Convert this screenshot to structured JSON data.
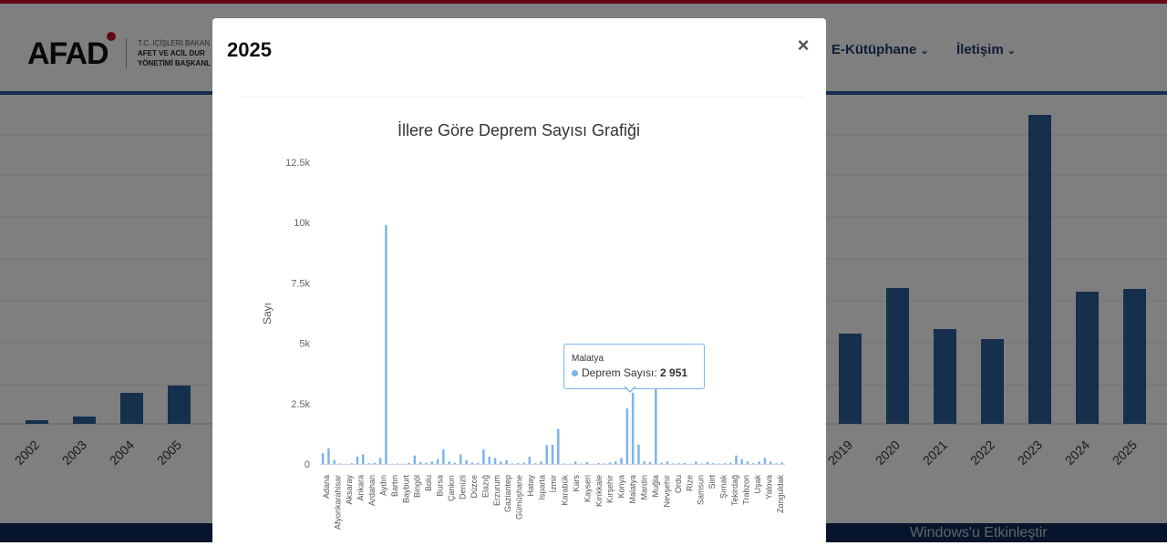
{
  "header": {
    "logo_text": "AFAD",
    "ministry_line1": "T.C. İÇİŞLERİ BAKAN",
    "ministry_line2": "AFET VE ACİL DUR",
    "ministry_line3": "YÖNETİMİ BAŞKANL",
    "nav": [
      {
        "label": "E-Kütüphane"
      },
      {
        "label": "İletişim"
      }
    ]
  },
  "background_chart": {
    "years": [
      "2002",
      "2003",
      "2004",
      "2005",
      "2019",
      "2020",
      "2021",
      "2022",
      "2023",
      "2024",
      "2025"
    ],
    "bar_color": "#2d5f9a"
  },
  "footer": {
    "watermark": "Windows'u Etkinleştir"
  },
  "modal": {
    "title": "2025",
    "close_label": "×"
  },
  "chart_data": {
    "type": "bar",
    "title": "İllere Göre Deprem Sayısı Grafiği",
    "ylabel": "Sayı",
    "xlabel": "",
    "ylim": [
      0,
      12500
    ],
    "yticks": [
      "0",
      "2.5k",
      "5k",
      "7.5k",
      "10k",
      "12.5k"
    ],
    "ytick_values": [
      0,
      2500,
      5000,
      7500,
      10000,
      12500
    ],
    "bar_color": "#7cb5ec",
    "series": [
      {
        "name": "Deprem Sayısı"
      }
    ],
    "categories": [
      "Adana",
      "Adıyaman",
      "Afyonkarahisar",
      "Ağrı",
      "Aksaray",
      "Amasya",
      "Ankara",
      "Antalya",
      "Ardahan",
      "Artvin",
      "Aydın",
      "Balıkesir",
      "Bartın",
      "Batman",
      "Bayburt",
      "Bilecik",
      "Bingöl",
      "Bitlis",
      "Bolu",
      "Burdur",
      "Bursa",
      "Çanakkale",
      "Çankırı",
      "Çorum",
      "Denizli",
      "Diyarbakır",
      "Düzce",
      "Edirne",
      "Elazığ",
      "Erzincan",
      "Erzurum",
      "Eskişehir",
      "Gaziantep",
      "Giresun",
      "Gümüşhane",
      "Hakkari",
      "Hatay",
      "Iğdır",
      "Isparta",
      "İstanbul",
      "İzmir",
      "Kahramanmaraş",
      "Karabük",
      "Karaman",
      "Kars",
      "Kastamonu",
      "Kayseri",
      "Kilis",
      "Kırıkkale",
      "Kırklareli",
      "Kırşehir",
      "Kocaeli",
      "Konya",
      "Kütahya",
      "Malatya",
      "Manisa",
      "Mardin",
      "Mersin",
      "Muğla",
      "Muş",
      "Nevşehir",
      "Niğde",
      "Ordu",
      "Osmaniye",
      "Rize",
      "Sakarya",
      "Samsun",
      "Şanlıurfa",
      "Siirt",
      "Sinop",
      "Şırnak",
      "Sivas",
      "Tekirdağ",
      "Tokat",
      "Trabzon",
      "Tunceli",
      "Uşak",
      "Van",
      "Yalova",
      "Yozgat",
      "Zonguldak"
    ],
    "visible_labels": [
      "Adana",
      "Afyonkarahisar",
      "Aksaray",
      "Ankara",
      "Ardahan",
      "Aydın",
      "Bartın",
      "Bayburt",
      "Bingöl",
      "Bolu",
      "Bursa",
      "Çankırı",
      "Denizli",
      "Düzce",
      "Elazığ",
      "Erzurum",
      "Gaziantep",
      "Gümüşhane",
      "Hatay",
      "Isparta",
      "İzmir",
      "Karabük",
      "Kars",
      "Kayseri",
      "Kırıkkale",
      "Kırşehir",
      "Konya",
      "Malatya",
      "Mardin",
      "Muğla",
      "Nevşehir",
      "Ordu",
      "Rize",
      "Samsun",
      "Siirt",
      "Şırnak",
      "Tekirdağ",
      "Trabzon",
      "Uşak",
      "Yalova",
      "Zonguldak"
    ],
    "values": [
      450,
      650,
      150,
      20,
      10,
      30,
      300,
      400,
      30,
      50,
      250,
      9900,
      10,
      20,
      10,
      40,
      350,
      80,
      50,
      100,
      200,
      600,
      100,
      50,
      400,
      150,
      60,
      40,
      600,
      300,
      250,
      100,
      150,
      20,
      30,
      50,
      300,
      30,
      100,
      780,
      800,
      1450,
      20,
      10,
      100,
      20,
      80,
      10,
      40,
      20,
      60,
      100,
      250,
      2300,
      2951,
      800,
      100,
      80,
      3150,
      50,
      100,
      20,
      30,
      40,
      10,
      100,
      20,
      80,
      30,
      20,
      30,
      50,
      350,
      200,
      100,
      30,
      100,
      250,
      100,
      30,
      60
    ],
    "tooltip": {
      "category": "Malatya",
      "series_label": "Deprem Sayısı:",
      "value_text": "2 951"
    }
  }
}
